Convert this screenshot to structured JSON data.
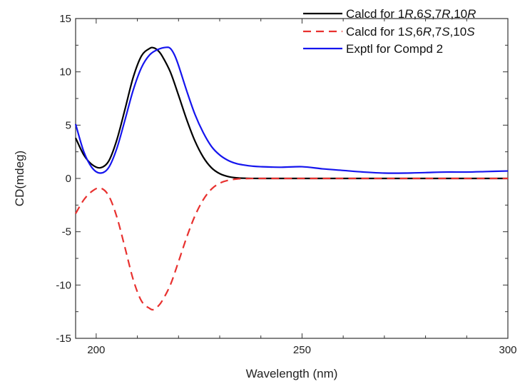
{
  "chart_data": {
    "type": "line",
    "xlabel": "Wavelength (nm)",
    "ylabel": "CD(mdeg)",
    "xlim": [
      195,
      300
    ],
    "ylim": [
      -15,
      15
    ],
    "x_ticks": [
      200,
      250,
      300
    ],
    "y_ticks": [
      -15,
      -10,
      -5,
      0,
      5,
      10,
      15
    ],
    "grid": false,
    "legend_position": "top-right",
    "series": [
      {
        "name": "Calcd for 1R,6S,7R,10R",
        "legend_parts": [
          {
            "t": "Calcd for 1",
            "i": false
          },
          {
            "t": "R",
            "i": true
          },
          {
            "t": ",6",
            "i": false
          },
          {
            "t": "S",
            "i": true
          },
          {
            "t": ",7",
            "i": false
          },
          {
            "t": "R",
            "i": true
          },
          {
            "t": ",10",
            "i": false
          },
          {
            "t": "R",
            "i": true
          }
        ],
        "color": "#000000",
        "dash": "solid",
        "x": [
          195,
          197,
          199,
          201,
          203,
          205,
          207,
          209,
          211,
          213,
          214,
          215,
          216,
          218,
          220,
          222,
          224,
          226,
          228,
          230,
          232,
          234,
          236,
          240,
          250,
          260,
          270,
          280,
          290,
          300
        ],
        "y": [
          3.8,
          2.2,
          1.3,
          1.0,
          1.6,
          3.6,
          6.5,
          9.5,
          11.5,
          12.2,
          12.25,
          12.0,
          11.5,
          10.0,
          7.8,
          5.5,
          3.5,
          2.0,
          1.0,
          0.45,
          0.18,
          0.06,
          0.02,
          0,
          0,
          0,
          0,
          0,
          0,
          0
        ]
      },
      {
        "name": "Calcd for 1S,6R,7S,10S",
        "legend_parts": [
          {
            "t": "Calcd for 1",
            "i": false
          },
          {
            "t": "S",
            "i": true
          },
          {
            "t": ",6",
            "i": false
          },
          {
            "t": "R",
            "i": true
          },
          {
            "t": ",7",
            "i": false
          },
          {
            "t": "S",
            "i": true
          },
          {
            "t": ",10",
            "i": false
          },
          {
            "t": "S",
            "i": true
          }
        ],
        "color": "#e8312f",
        "dash": "dashed",
        "x": [
          195,
          197,
          199,
          201,
          203,
          205,
          207,
          209,
          211,
          213,
          214,
          215,
          216,
          218,
          220,
          222,
          224,
          226,
          228,
          230,
          232,
          234,
          236,
          240,
          250,
          260,
          270,
          280,
          290,
          300
        ],
        "y": [
          -3.3,
          -2.0,
          -1.2,
          -0.9,
          -1.6,
          -3.6,
          -6.5,
          -9.5,
          -11.5,
          -12.2,
          -12.3,
          -12.0,
          -11.5,
          -10.0,
          -7.8,
          -5.5,
          -3.5,
          -2.0,
          -1.0,
          -0.45,
          -0.18,
          -0.06,
          -0.02,
          0,
          0,
          0,
          0,
          0,
          0,
          0
        ]
      },
      {
        "name": "Exptl for Compd 2",
        "legend_parts": [
          {
            "t": "Exptl for Compd 2",
            "i": false
          }
        ],
        "color": "#1515ee",
        "dash": "solid",
        "x": [
          195,
          197,
          199,
          201,
          203,
          205,
          207,
          209,
          211,
          213,
          215,
          217,
          218,
          219,
          220,
          222,
          224,
          226,
          228,
          230,
          232,
          234,
          236,
          238,
          240,
          245,
          250,
          255,
          260,
          265,
          270,
          275,
          280,
          285,
          290,
          295,
          300
        ],
        "y": [
          5.1,
          2.5,
          1.0,
          0.5,
          1.0,
          2.8,
          5.5,
          8.3,
          10.4,
          11.6,
          12.1,
          12.3,
          12.2,
          11.6,
          10.6,
          8.2,
          6.0,
          4.3,
          3.0,
          2.2,
          1.7,
          1.4,
          1.25,
          1.15,
          1.1,
          1.05,
          1.1,
          0.9,
          0.75,
          0.6,
          0.5,
          0.5,
          0.55,
          0.6,
          0.6,
          0.65,
          0.7
        ]
      }
    ]
  }
}
